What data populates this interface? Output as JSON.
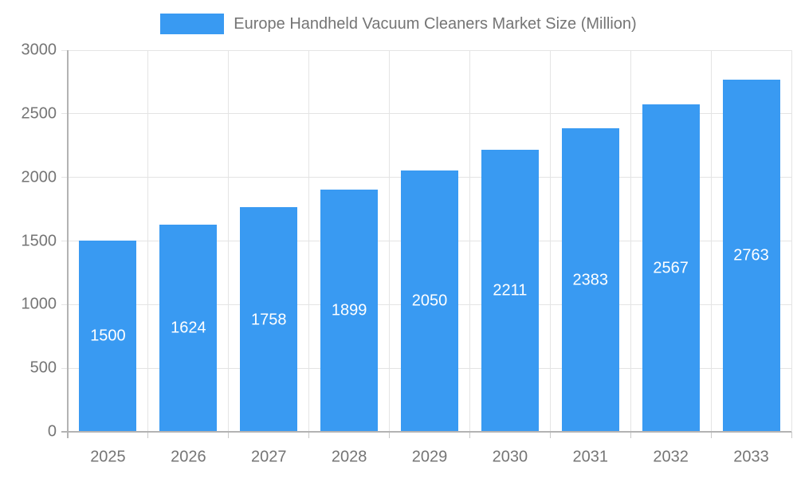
{
  "chart_data": {
    "type": "bar",
    "title": "",
    "legend": {
      "label": "Europe Handheld Vacuum Cleaners Market Size (Million)",
      "position": "top"
    },
    "categories": [
      "2025",
      "2026",
      "2027",
      "2028",
      "2029",
      "2030",
      "2031",
      "2032",
      "2033"
    ],
    "series": [
      {
        "name": "Europe Handheld Vacuum Cleaners Market Size (Million)",
        "values": [
          1500,
          1624,
          1758,
          1899,
          2050,
          2211,
          2383,
          2567,
          2763
        ]
      }
    ],
    "xlabel": "",
    "ylabel": "",
    "ylim": [
      0,
      3000
    ],
    "ytick_interval": 500,
    "ytick_labels": [
      "0",
      "500",
      "1000",
      "1500",
      "2000",
      "2500",
      "3000"
    ],
    "grid": "on",
    "value_labels": "inside-center-white",
    "colors": {
      "bar": "#399af2",
      "axis_line": "#b3b3b3",
      "gridline": "#e4e4e4",
      "tick": "#c9c9c9",
      "axis_text": "#757575",
      "value_label_text": "#ffffff",
      "background": "#ffffff"
    }
  }
}
